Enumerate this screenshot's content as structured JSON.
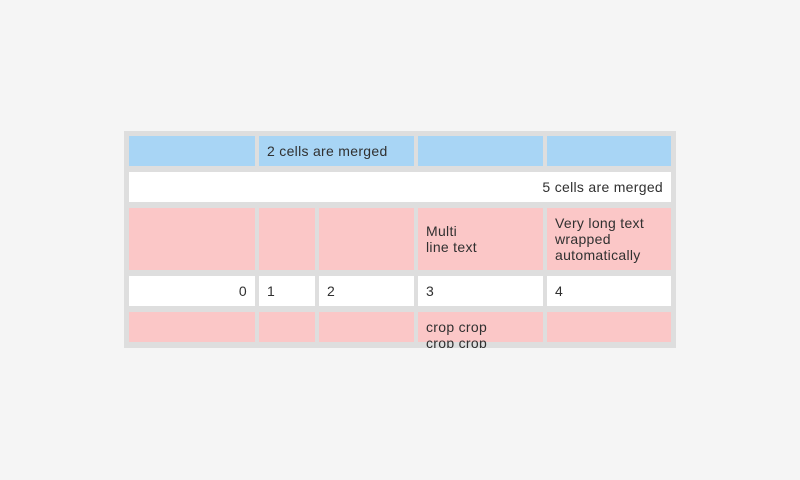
{
  "page": {
    "background_color": "#f5f5f5"
  },
  "colors": {
    "page_bg": "#f5f5f5",
    "table_gap": "#dedede",
    "cell_blue": "#a8d5f5",
    "cell_pink": "#fbc7c7",
    "cell_white": "#ffffff",
    "text_color": "#303030"
  },
  "table": {
    "rows": [
      {
        "style": "blue",
        "cells": [
          {
            "text": ""
          },
          {
            "text": "2 cells are merged",
            "col_span": 2
          },
          {
            "text": ""
          },
          {
            "text": ""
          }
        ]
      },
      {
        "style": "white",
        "cells": [
          {
            "text": "5 cells are merged",
            "col_span": 5,
            "align": "right"
          }
        ]
      },
      {
        "style": "pink",
        "cells": [
          {
            "text": ""
          },
          {
            "text": ""
          },
          {
            "text": ""
          },
          {
            "text": "Multi\nline text"
          },
          {
            "text": "Very long text\nwrapped\nautomatically"
          }
        ]
      },
      {
        "style": "white",
        "cells": [
          {
            "text": "0",
            "align": "right"
          },
          {
            "text": "1"
          },
          {
            "text": "2"
          },
          {
            "text": "3"
          },
          {
            "text": "4"
          }
        ]
      },
      {
        "style": "pink",
        "cells": [
          {
            "text": ""
          },
          {
            "text": ""
          },
          {
            "text": ""
          },
          {
            "text": "crop crop\ncrop crop",
            "clipped": true
          },
          {
            "text": ""
          }
        ]
      }
    ]
  }
}
